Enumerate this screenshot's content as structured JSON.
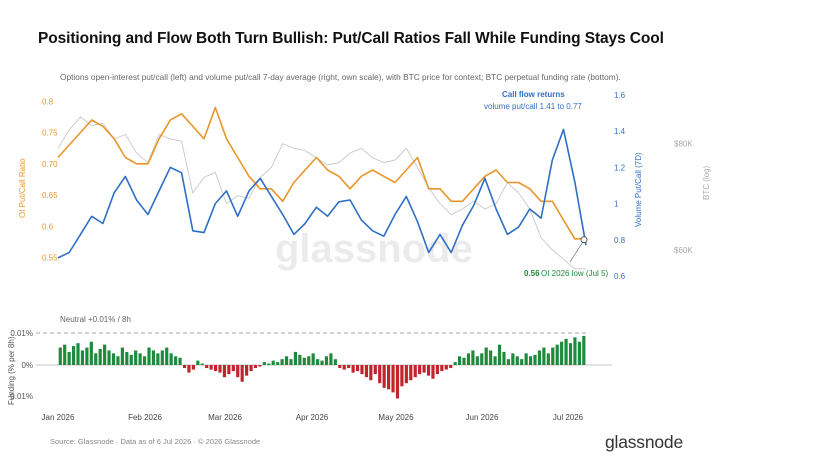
{
  "title": "Positioning and Flow Both Turn Bullish: Put/Call Ratios Fall While Funding Stays Cool",
  "subtitle": "Options open-interest put/call (left) and volume put/call 7-day average (right, own scale), with BTC price for context; BTC perpetual funding rate (bottom).",
  "source": "Source: Glassnode · Data as of 6 Jul 2026 · © 2026 Glassnode",
  "brand": "glassnode",
  "watermark": "glassnode",
  "colors": {
    "oi": "#e8962c",
    "volume": "#2f6fc4",
    "btc": "#c8c8c8",
    "pos": "#1f8a3c",
    "neg": "#c0242c",
    "annotation_blue": "#2f6fc4",
    "annotation_green": "#1f8a3c"
  },
  "chart_data": [
    {
      "type": "line",
      "x_dates": [
        "2026-01-01",
        "2026-01-05",
        "2026-01-09",
        "2026-01-13",
        "2026-01-17",
        "2026-01-21",
        "2026-01-25",
        "2026-01-29",
        "2026-02-02",
        "2026-02-06",
        "2026-02-10",
        "2026-02-14",
        "2026-02-18",
        "2026-02-22",
        "2026-02-26",
        "2026-03-02",
        "2026-03-06",
        "2026-03-10",
        "2026-03-14",
        "2026-03-18",
        "2026-03-22",
        "2026-03-26",
        "2026-03-30",
        "2026-04-03",
        "2026-04-07",
        "2026-04-11",
        "2026-04-15",
        "2026-04-19",
        "2026-04-23",
        "2026-04-27",
        "2026-05-01",
        "2026-05-05",
        "2026-05-09",
        "2026-05-13",
        "2026-05-17",
        "2026-05-21",
        "2026-05-25",
        "2026-05-29",
        "2026-06-02",
        "2026-06-06",
        "2026-06-10",
        "2026-06-14",
        "2026-06-18",
        "2026-06-22",
        "2026-06-26",
        "2026-06-30",
        "2026-07-04",
        "2026-07-06"
      ],
      "series": [
        {
          "name": "OI Put/Call Ratio",
          "axis": "left",
          "values": [
            0.71,
            0.73,
            0.75,
            0.77,
            0.76,
            0.74,
            0.71,
            0.7,
            0.7,
            0.74,
            0.77,
            0.78,
            0.76,
            0.74,
            0.79,
            0.74,
            0.71,
            0.68,
            0.66,
            0.66,
            0.64,
            0.67,
            0.69,
            0.71,
            0.69,
            0.68,
            0.66,
            0.68,
            0.69,
            0.68,
            0.67,
            0.69,
            0.71,
            0.66,
            0.66,
            0.64,
            0.64,
            0.66,
            0.68,
            0.69,
            0.67,
            0.67,
            0.66,
            0.64,
            0.64,
            0.61,
            0.58,
            0.58
          ]
        },
        {
          "name": "Volume Put/Call (7D)",
          "axis": "right",
          "values": [
            0.7,
            0.73,
            0.83,
            0.93,
            0.89,
            1.06,
            1.15,
            1.02,
            0.94,
            1.07,
            1.2,
            1.17,
            0.85,
            0.84,
            1.0,
            1.07,
            0.93,
            1.07,
            1.14,
            1.04,
            0.94,
            0.83,
            0.89,
            0.98,
            0.93,
            1.01,
            1.02,
            0.91,
            0.85,
            0.82,
            0.94,
            1.04,
            0.9,
            0.73,
            0.83,
            0.73,
            0.88,
            0.99,
            1.14,
            0.97,
            0.83,
            0.87,
            0.97,
            0.92,
            1.24,
            1.41,
            1.12,
            0.77
          ]
        },
        {
          "name": "BTC",
          "axis": "log",
          "values": [
            79000,
            83000,
            86000,
            84000,
            84500,
            81000,
            82000,
            78000,
            76000,
            82000,
            81000,
            80500,
            70000,
            73000,
            74000,
            68000,
            69500,
            69000,
            73000,
            75000,
            80000,
            79000,
            78500,
            77000,
            75500,
            76000,
            78000,
            79000,
            77000,
            76000,
            76500,
            79000,
            75000,
            71000,
            68000,
            66000,
            67000,
            68500,
            67000,
            68000,
            72000,
            70000,
            67000,
            62000,
            60000,
            58500,
            57000,
            57000
          ]
        }
      ],
      "ylabel_left": "OI Put/Call Ratio",
      "ylabel_right": "Volume Put/Call (7D)",
      "ylabel_log": "BTC (log)",
      "y_left_ticks": [
        "0.8",
        "0.75",
        "0.70",
        "0.65",
        "0.6",
        "0.55"
      ],
      "y_right_ticks": [
        "1.6",
        "1.4",
        "1.2",
        "1",
        "0.8",
        "0.6"
      ],
      "y_log_ticks": [
        "$80K",
        "$60K"
      ],
      "ylim_left": [
        0.53,
        0.81
      ],
      "ylim_right": [
        0.6,
        1.6
      ],
      "annotations": {
        "call_flow_title": "Call flow returns",
        "call_flow_text": "volume put/call 1.41 to 0.77",
        "oi_low_value": "0.56",
        "oi_low_text": "OI 2026 low (Jul 5)"
      },
      "grid": false
    },
    {
      "type": "bar",
      "ylabel": "Funding (% per 8h)",
      "y_ticks": [
        "0.01%",
        "0%",
        "-0.01%"
      ],
      "ylim": [
        -0.0115,
        0.011
      ],
      "neutral_label": "Neutral +0.01% / 8h",
      "x_ticks": [
        "Jan 2026",
        "Feb 2026",
        "Mar 2026",
        "Apr 2026",
        "May 2026",
        "Jun 2026",
        "Jul 2026"
      ],
      "values": [
        0.006,
        0.007,
        0.0045,
        0.0065,
        0.0075,
        0.005,
        0.006,
        0.008,
        0.004,
        0.0055,
        0.007,
        0.005,
        0.004,
        0.003,
        0.006,
        0.0045,
        0.0035,
        0.005,
        0.004,
        0.003,
        0.006,
        0.005,
        0.004,
        0.005,
        0.006,
        0.004,
        0.003,
        0.0025,
        -0.001,
        -0.0025,
        -0.0015,
        0.0015,
        0.0005,
        -0.001,
        -0.0015,
        -0.002,
        -0.0025,
        -0.004,
        -0.003,
        -0.002,
        -0.004,
        -0.0055,
        -0.0035,
        -0.002,
        -0.001,
        -0.0005,
        0.001,
        0.0005,
        0.0015,
        0.001,
        0.002,
        0.003,
        0.002,
        0.0045,
        0.0035,
        0.0025,
        0.003,
        0.004,
        0.002,
        0.0015,
        0.003,
        0.004,
        0.002,
        -0.001,
        -0.0015,
        -0.001,
        -0.0025,
        -0.002,
        -0.003,
        -0.004,
        -0.005,
        -0.003,
        -0.006,
        -0.0075,
        -0.008,
        -0.009,
        -0.011,
        -0.007,
        -0.006,
        -0.005,
        -0.004,
        -0.003,
        -0.0025,
        -0.0035,
        -0.0045,
        -0.003,
        -0.002,
        -0.0015,
        -0.001,
        0.001,
        0.003,
        0.0025,
        0.004,
        0.005,
        0.003,
        0.004,
        0.006,
        0.005,
        0.003,
        0.007,
        0.0045,
        0.002,
        0.004,
        0.003,
        0.002,
        0.004,
        0.003,
        0.0035,
        0.005,
        0.006,
        0.004,
        0.006,
        0.007,
        0.008,
        0.009,
        0.0075,
        0.0095,
        0.008,
        0.01
      ]
    }
  ]
}
